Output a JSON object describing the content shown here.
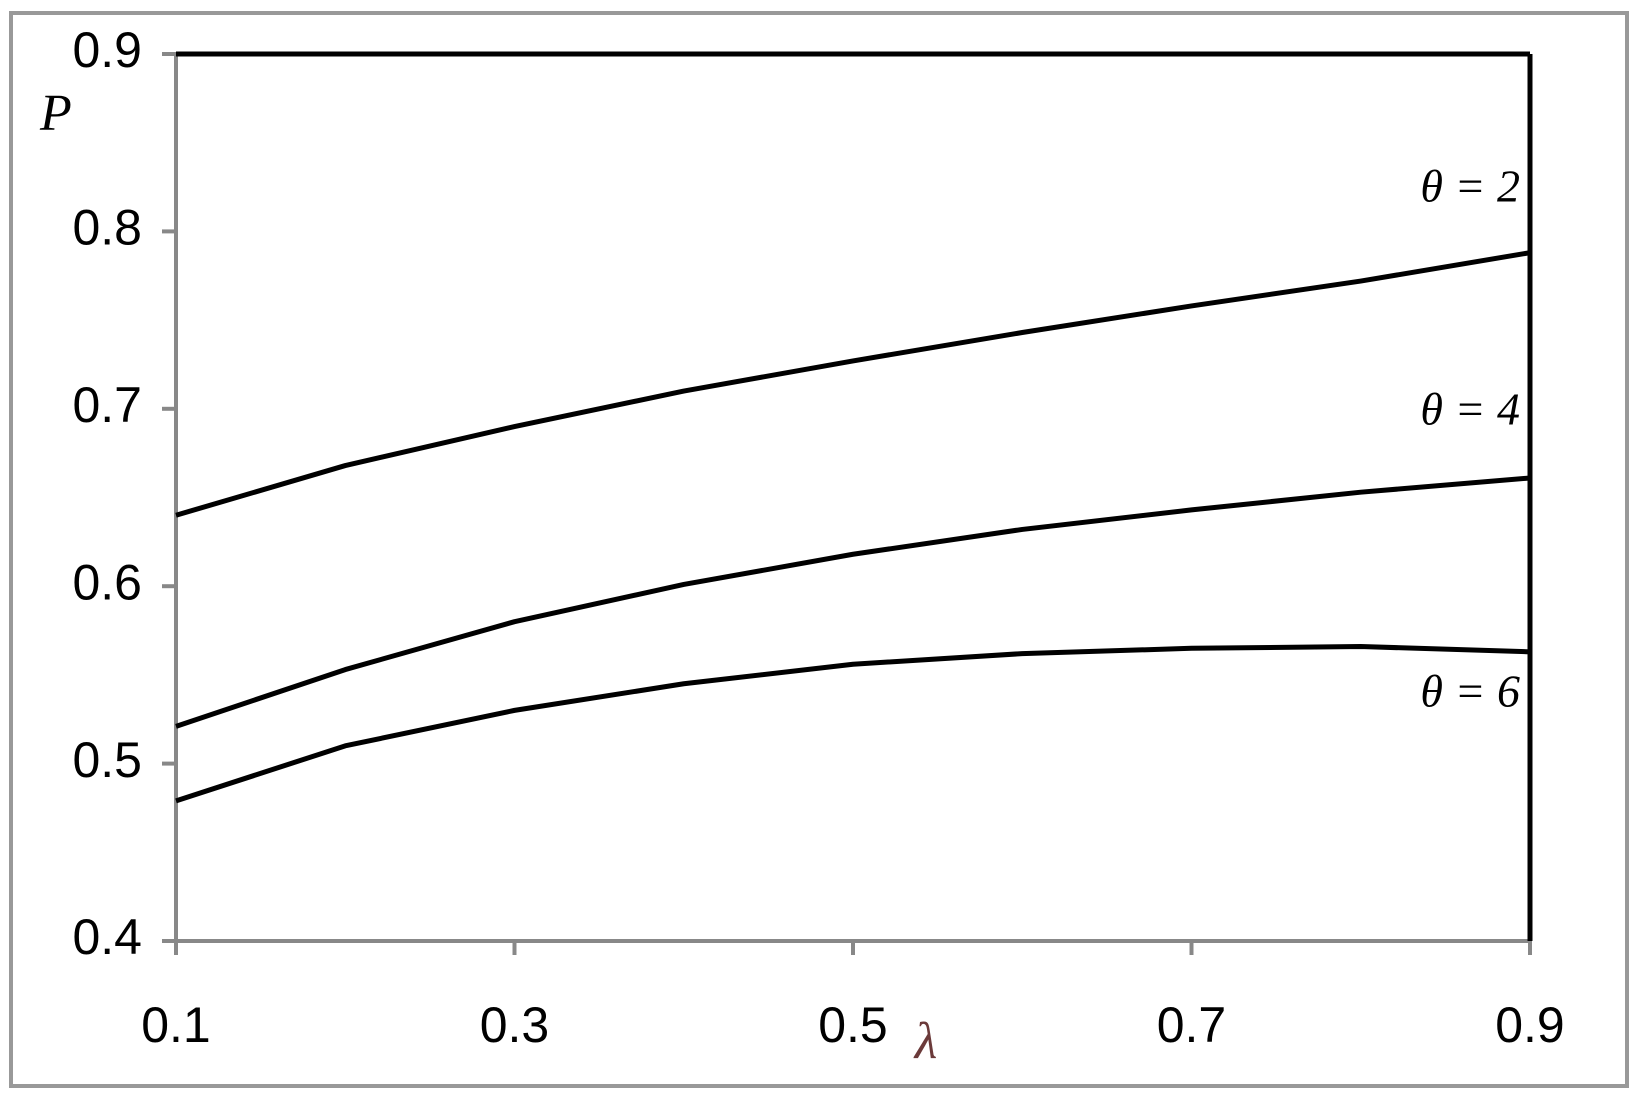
{
  "chart_data": {
    "type": "line",
    "x_label": "λ",
    "y_label": "P",
    "x": [
      0.1,
      0.2,
      0.3,
      0.4,
      0.5,
      0.6,
      0.7,
      0.8,
      0.9
    ],
    "series": [
      {
        "name": "θ = 2",
        "color": "#000000",
        "values": [
          0.64,
          0.668,
          0.69,
          0.71,
          0.727,
          0.743,
          0.758,
          0.772,
          0.788
        ]
      },
      {
        "name": "θ = 4",
        "color": "#000000",
        "values": [
          0.521,
          0.553,
          0.58,
          0.601,
          0.618,
          0.632,
          0.643,
          0.653,
          0.661
        ]
      },
      {
        "name": "θ = 6",
        "color": "#000000",
        "values": [
          0.479,
          0.51,
          0.53,
          0.545,
          0.556,
          0.562,
          0.565,
          0.566,
          0.563
        ]
      }
    ],
    "xlim": [
      0.1,
      0.9
    ],
    "xticks": [
      0.1,
      0.3,
      0.5,
      0.7,
      0.9
    ],
    "ylim": [
      0.4,
      0.9
    ],
    "yticks": [
      0.4,
      0.5,
      0.6,
      0.7,
      0.8,
      0.9
    ],
    "grid": false
  }
}
